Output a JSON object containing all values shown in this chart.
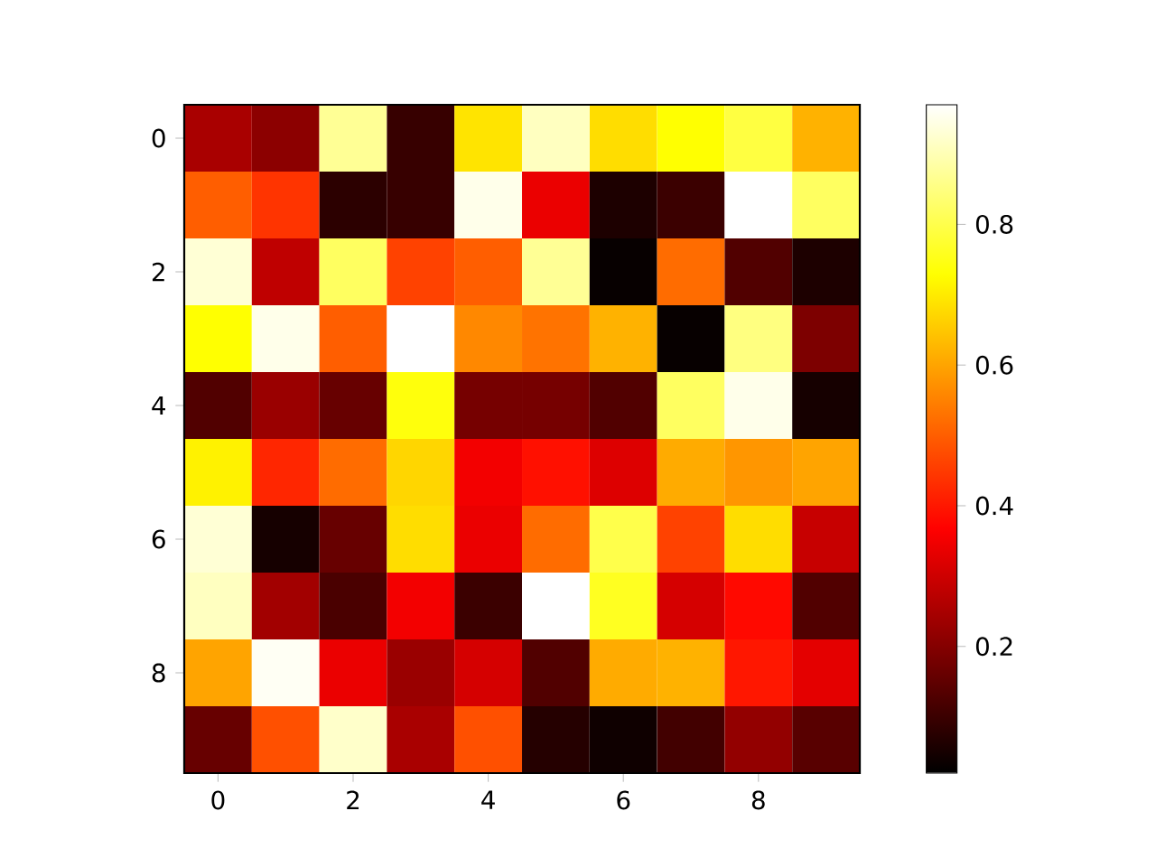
{
  "chart_data": {
    "type": "heatmap",
    "categories": [
      "0",
      null,
      "2",
      null,
      "4",
      null,
      "6",
      null,
      "8",
      null
    ],
    "y_categories": [
      "0",
      null,
      "2",
      null,
      "4",
      null,
      "6",
      null,
      "8",
      null
    ],
    "cells": [
      [
        0.25,
        0.21,
        0.87,
        0.095,
        0.69,
        0.91,
        0.68,
        0.73,
        0.79,
        0.62
      ],
      [
        0.5,
        0.44,
        0.08,
        0.095,
        0.95,
        0.34,
        0.06,
        0.1,
        0.97,
        0.82
      ],
      [
        0.93,
        0.28,
        0.82,
        0.46,
        0.5,
        0.87,
        0.03,
        0.52,
        0.13,
        0.06
      ],
      [
        0.73,
        0.95,
        0.5,
        0.97,
        0.56,
        0.53,
        0.62,
        0.03,
        0.85,
        0.19
      ],
      [
        0.13,
        0.23,
        0.16,
        0.74,
        0.18,
        0.18,
        0.13,
        0.82,
        0.95,
        0.05
      ],
      [
        0.71,
        0.42,
        0.52,
        0.67,
        0.35,
        0.39,
        0.32,
        0.61,
        0.58,
        0.6
      ],
      [
        0.93,
        0.05,
        0.16,
        0.68,
        0.34,
        0.52,
        0.8,
        0.46,
        0.68,
        0.29
      ],
      [
        0.91,
        0.24,
        0.12,
        0.35,
        0.1,
        0.97,
        0.76,
        0.31,
        0.38,
        0.13
      ],
      [
        0.6,
        0.96,
        0.34,
        0.23,
        0.31,
        0.13,
        0.61,
        0.62,
        0.4,
        0.33
      ],
      [
        0.16,
        0.48,
        0.92,
        0.25,
        0.48,
        0.07,
        0.04,
        0.11,
        0.22,
        0.14
      ]
    ],
    "clim": [
      0.02,
      0.97
    ],
    "cticks": [
      0.2,
      0.4,
      0.6,
      0.8
    ]
  }
}
